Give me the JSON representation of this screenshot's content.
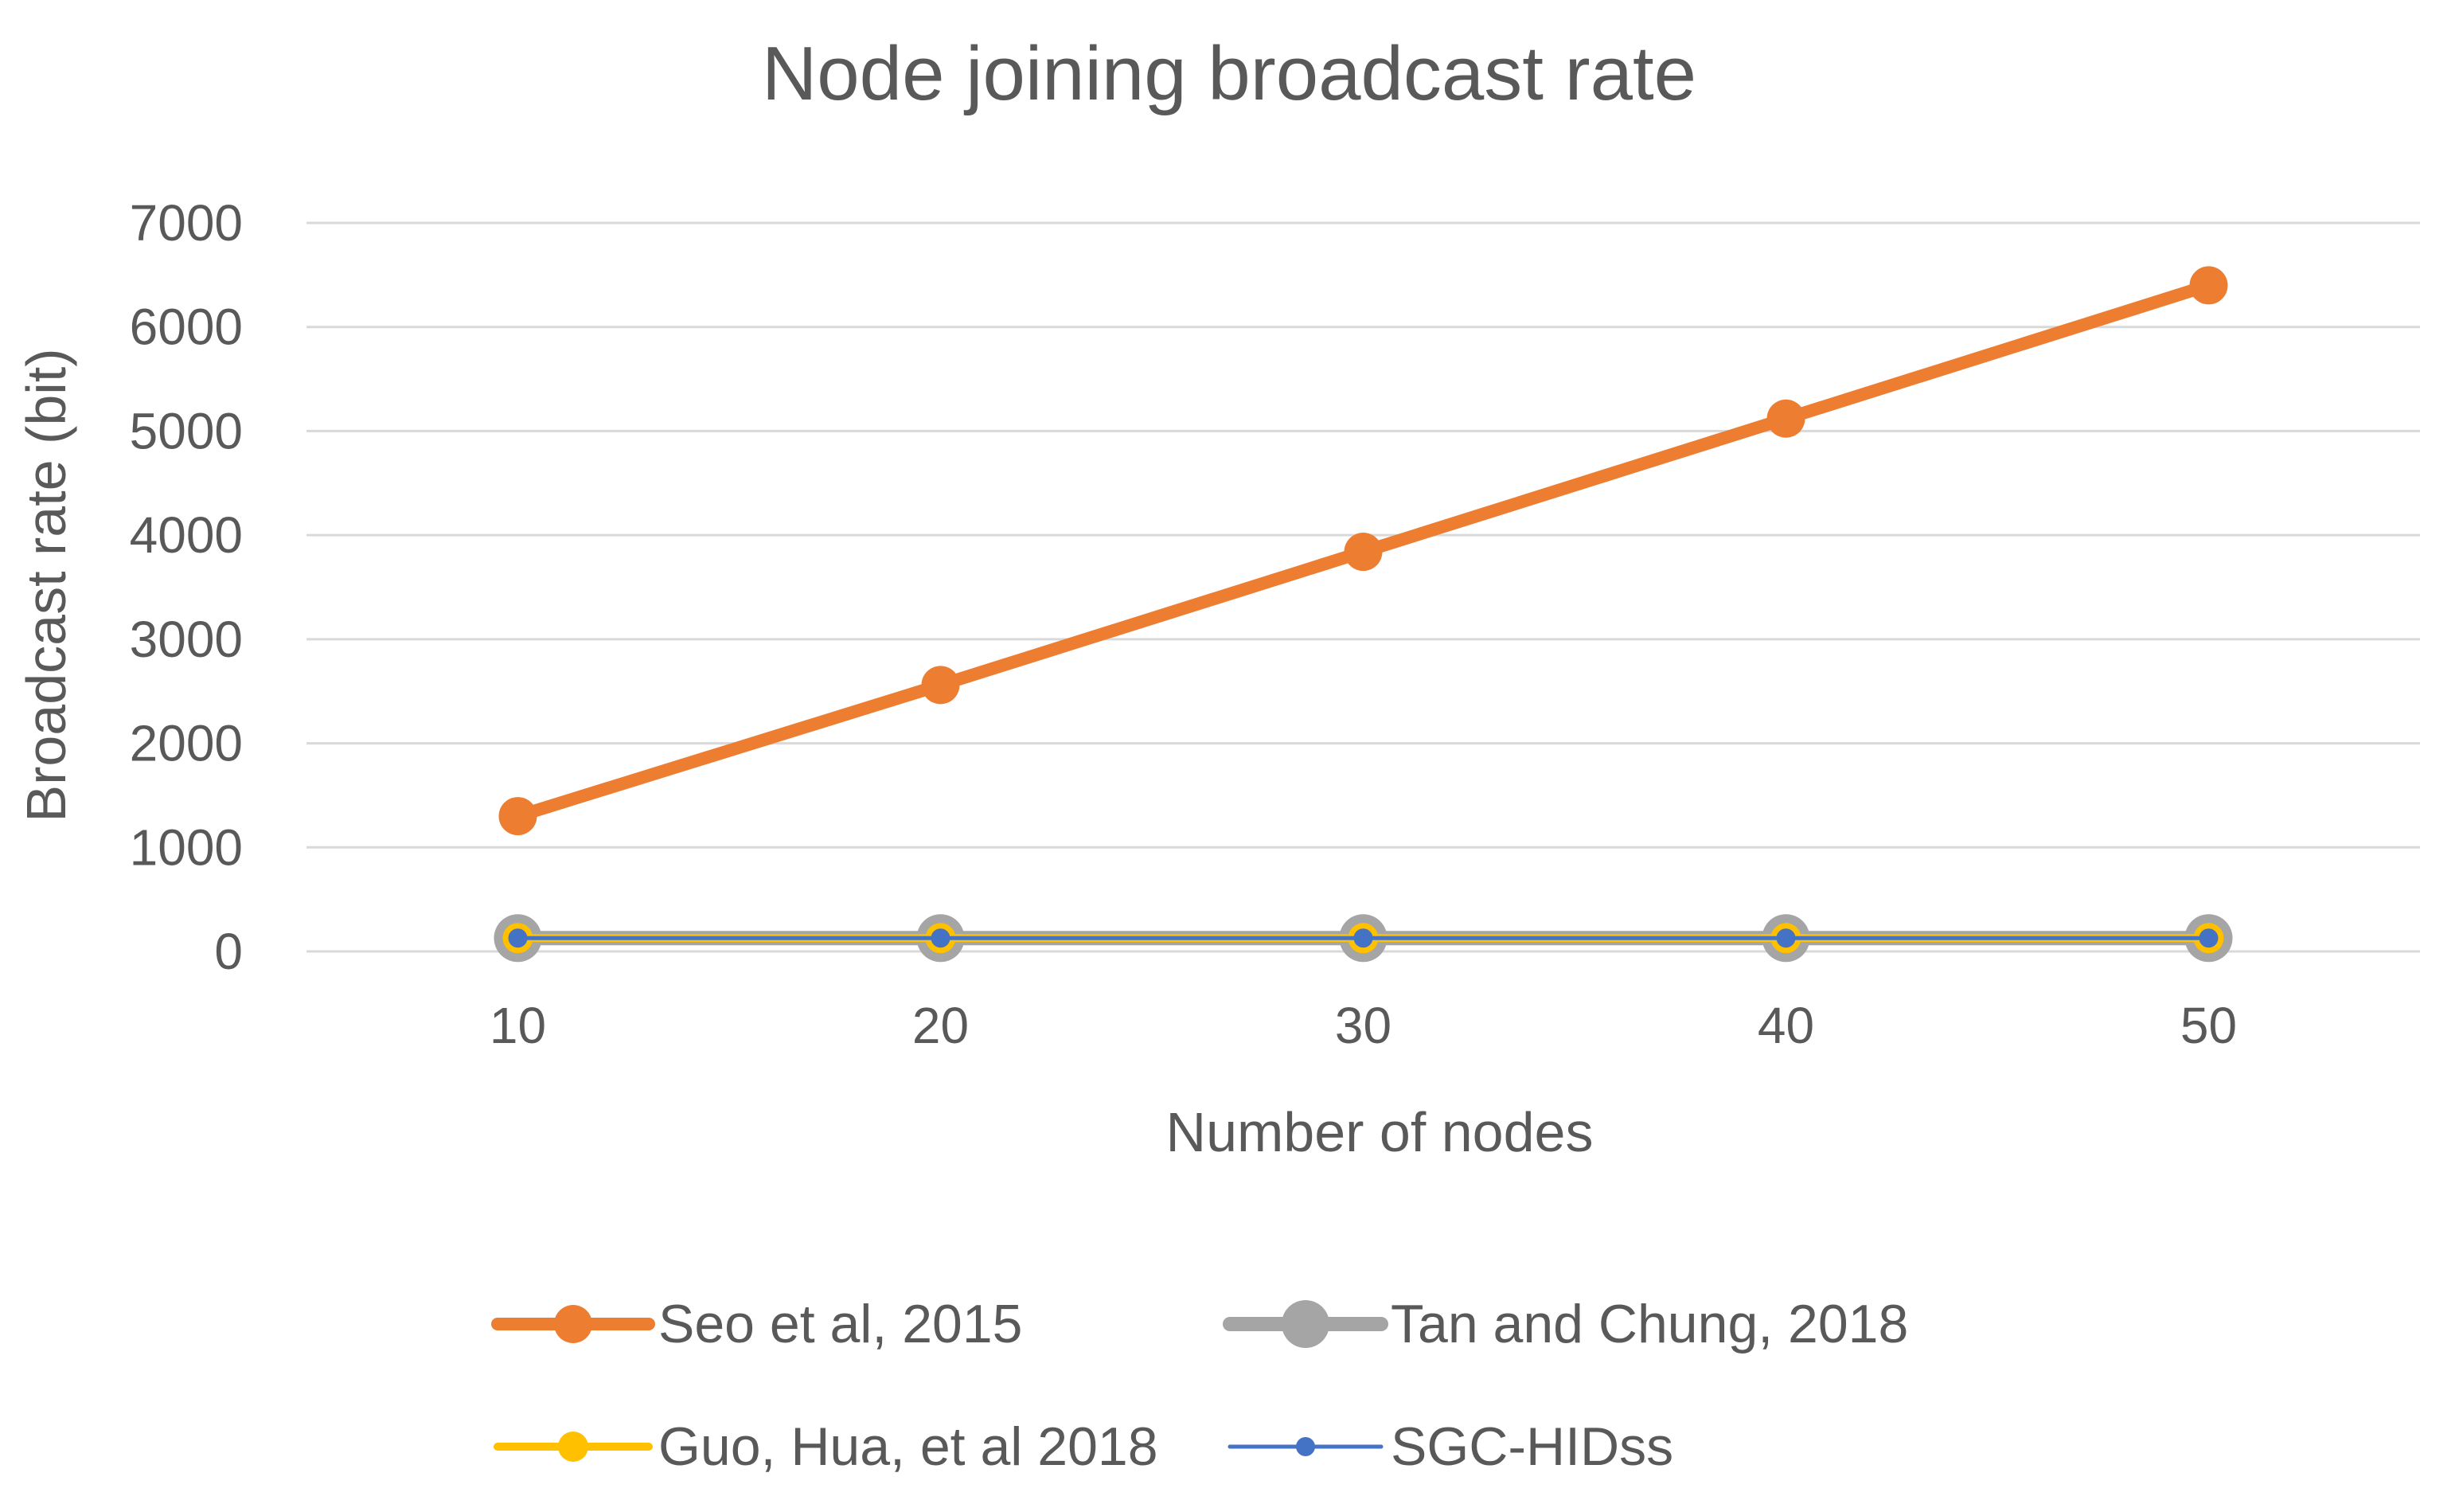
{
  "chart_data": {
    "type": "line",
    "title": "Node joining broadcast rate",
    "xlabel": "Number of nodes",
    "ylabel": "Broadcast rate (bit)",
    "categories": [
      "10",
      "20",
      "30",
      "40",
      "50"
    ],
    "ylim": [
      0,
      7000
    ],
    "yticks": [
      0,
      1000,
      2000,
      3000,
      4000,
      5000,
      6000,
      7000
    ],
    "grid": true,
    "legend_position": "bottom",
    "series": [
      {
        "name": "Seo et al, 2015",
        "values": [
          1300,
          2560,
          3840,
          5120,
          6400
        ],
        "color": "#ED7D31"
      },
      {
        "name": "Tan and Chung, 2018",
        "values": [
          128,
          128,
          128,
          128,
          128
        ],
        "color": "#A5A5A5"
      },
      {
        "name": "Guo, Hua, et al 2018",
        "values": [
          128,
          128,
          128,
          128,
          128
        ],
        "color": "#FFC000"
      },
      {
        "name": "SGC-HIDss",
        "values": [
          128,
          128,
          128,
          128,
          128
        ],
        "color": "#4472C4"
      }
    ]
  }
}
